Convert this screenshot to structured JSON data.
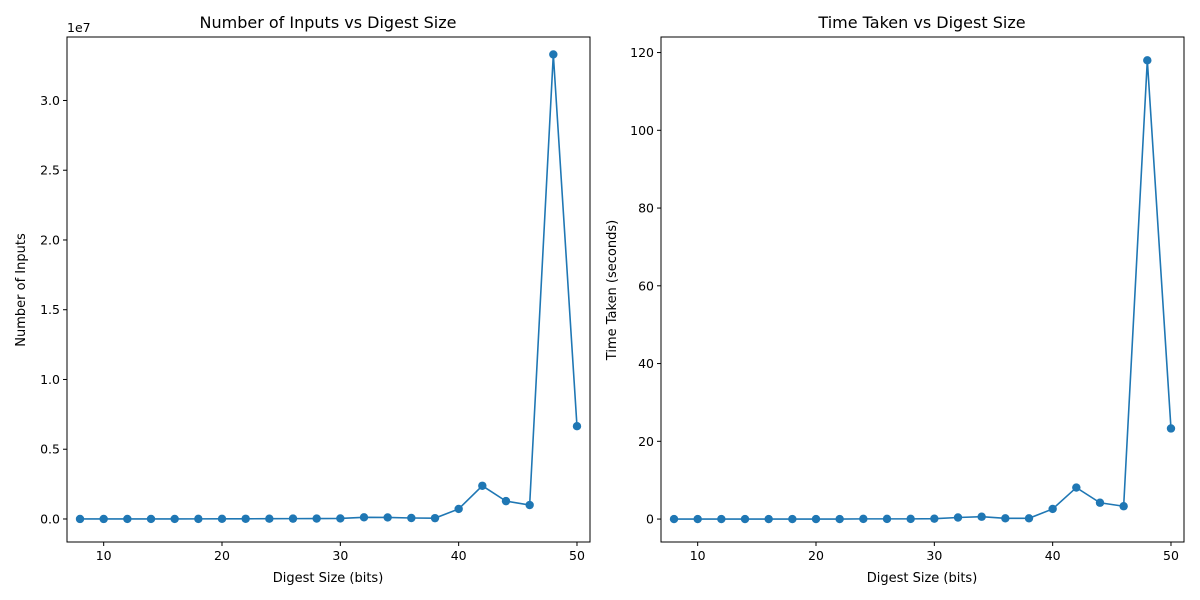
{
  "chart_data": [
    {
      "type": "line",
      "title": "Number of Inputs vs Digest Size",
      "xlabel": "Digest Size (bits)",
      "ylabel": "Number of Inputs",
      "offset_text": "1e7",
      "xlim": [
        6.9,
        51.1
      ],
      "ylim": [
        -1650000,
        34550000
      ],
      "xticks": [
        10,
        20,
        30,
        40,
        50
      ],
      "yticks": [
        0,
        5000000,
        10000000,
        15000000,
        20000000,
        25000000,
        30000000
      ],
      "ytick_labels": [
        "0.0",
        "0.5",
        "1.0",
        "1.5",
        "2.0",
        "2.5",
        "3.0"
      ],
      "x": [
        8,
        10,
        12,
        14,
        16,
        18,
        20,
        22,
        24,
        26,
        28,
        30,
        32,
        34,
        36,
        38,
        40,
        42,
        44,
        46,
        48,
        50
      ],
      "series": [
        {
          "color": "#1f77b4",
          "values": [
            300,
            900,
            1800,
            3000,
            5000,
            8000,
            10000,
            15000,
            20000,
            25000,
            30000,
            40000,
            120000,
            110000,
            70000,
            60000,
            720000,
            2380000,
            1280000,
            1000000,
            33300000,
            6650000
          ]
        }
      ],
      "grid": false
    },
    {
      "type": "line",
      "title": "Time Taken vs Digest Size",
      "xlabel": "Digest Size (bits)",
      "ylabel": "Time Taken (seconds)",
      "xlim": [
        6.9,
        51.1
      ],
      "ylim": [
        -5.9,
        124
      ],
      "xticks": [
        10,
        20,
        30,
        40,
        50
      ],
      "yticks": [
        0,
        20,
        40,
        60,
        80,
        100,
        120
      ],
      "ytick_labels": [
        "0",
        "20",
        "40",
        "60",
        "80",
        "100",
        "120"
      ],
      "x": [
        8,
        10,
        12,
        14,
        16,
        18,
        20,
        22,
        24,
        26,
        28,
        30,
        32,
        34,
        36,
        38,
        40,
        42,
        44,
        46,
        48,
        50
      ],
      "series": [
        {
          "color": "#1f77b4",
          "values": [
            0.0,
            0.0,
            0.0,
            0.0,
            0.0,
            0.0,
            0.0,
            0.0,
            0.05,
            0.05,
            0.05,
            0.1,
            0.4,
            0.6,
            0.2,
            0.2,
            2.6,
            8.1,
            4.2,
            3.3,
            118,
            23.3
          ]
        }
      ],
      "grid": false
    }
  ]
}
